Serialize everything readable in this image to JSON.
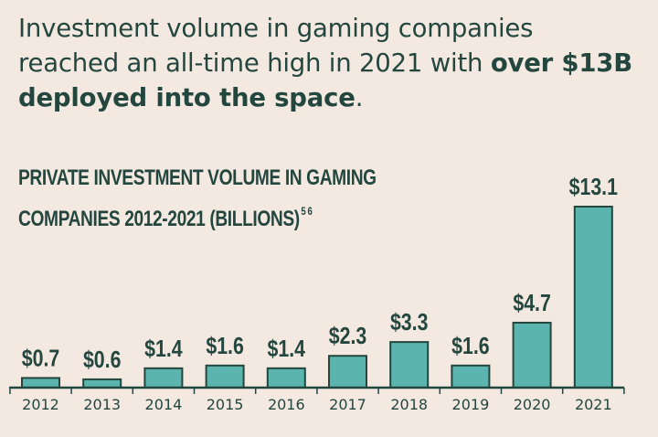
{
  "headline": {
    "part1": "Investment volume in gaming companies reached an all-time high in 2021 with ",
    "bold": "over $13B deployed into the space",
    "end": "."
  },
  "chart_data": {
    "type": "bar",
    "title_line1": "PRIVATE INVESTMENT VOLUME IN GAMING",
    "title_line2": "COMPANIES 2012-2021 (BILLIONS)",
    "title_footnote": "5 6",
    "categories": [
      "2012",
      "2013",
      "2014",
      "2015",
      "2016",
      "2017",
      "2018",
      "2019",
      "2020",
      "2021"
    ],
    "values": [
      0.7,
      0.6,
      1.4,
      1.6,
      1.4,
      2.3,
      3.3,
      1.6,
      4.7,
      13.1
    ],
    "value_labels": [
      "$0.7",
      "$0.6",
      "$1.4",
      "$1.6",
      "$1.4",
      "$2.3",
      "$3.3",
      "$1.6",
      "$4.7",
      "$13.1"
    ],
    "bar_color": "#5bb5ae",
    "text_color": "#23463f",
    "background": "#f3e9e0",
    "grid": false
  }
}
